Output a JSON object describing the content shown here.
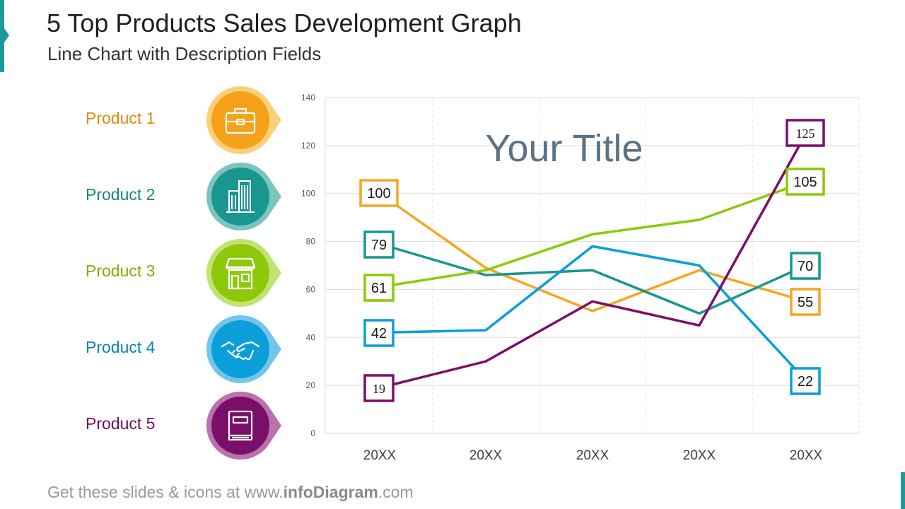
{
  "header": {
    "title": "5 Top Products Sales Development Graph",
    "subtitle": "Line Chart with Description Fields"
  },
  "footer": {
    "prefix": "Get these slides & icons at www.",
    "brand": "infoDiagram",
    "suffix": ".com"
  },
  "products": [
    {
      "label": "Product 1",
      "icon": "toolbox-icon",
      "color": "#f5a11a",
      "light": "#fbd07a"
    },
    {
      "label": "Product 2",
      "icon": "building-icon",
      "color": "#1a9690",
      "light": "#7cc4c0"
    },
    {
      "label": "Product 3",
      "icon": "storefront-icon",
      "color": "#8cc90a",
      "light": "#c2e371"
    },
    {
      "label": "Product 4",
      "icon": "handshake-icon",
      "color": "#0a9fd8",
      "light": "#72c6ea"
    },
    {
      "label": "Product 5",
      "icon": "book-icon",
      "color": "#7a0f6a",
      "light": "#b872ad"
    }
  ],
  "chart_data": {
    "type": "line",
    "title": "Your Title",
    "categories": [
      "20XX",
      "20XX",
      "20XX",
      "20XX",
      "20XX"
    ],
    "ylim": [
      0,
      140
    ],
    "yticks": [
      0,
      20,
      40,
      60,
      80,
      100,
      120,
      140
    ],
    "grid": true,
    "series": [
      {
        "name": "Product 1",
        "color": "#f5a623",
        "values": [
          100,
          69,
          51,
          68,
          55
        ],
        "start_label": "100",
        "end_label": "55"
      },
      {
        "name": "Product 2",
        "color": "#1a9690",
        "values": [
          79,
          66,
          68,
          50,
          70
        ],
        "start_label": "79",
        "end_label": "70"
      },
      {
        "name": "Product 3",
        "color": "#8cc90a",
        "values": [
          61,
          68,
          83,
          89,
          105
        ],
        "start_label": "61",
        "end_label": "105"
      },
      {
        "name": "Product 4",
        "color": "#0a9fd8",
        "values": [
          42,
          43,
          78,
          70,
          22
        ],
        "start_label": "42",
        "end_label": "22"
      },
      {
        "name": "Product 5",
        "color": "#7a0f6a",
        "values": [
          19,
          30,
          55,
          45,
          125
        ],
        "start_label": "19",
        "end_label": "125"
      }
    ]
  }
}
